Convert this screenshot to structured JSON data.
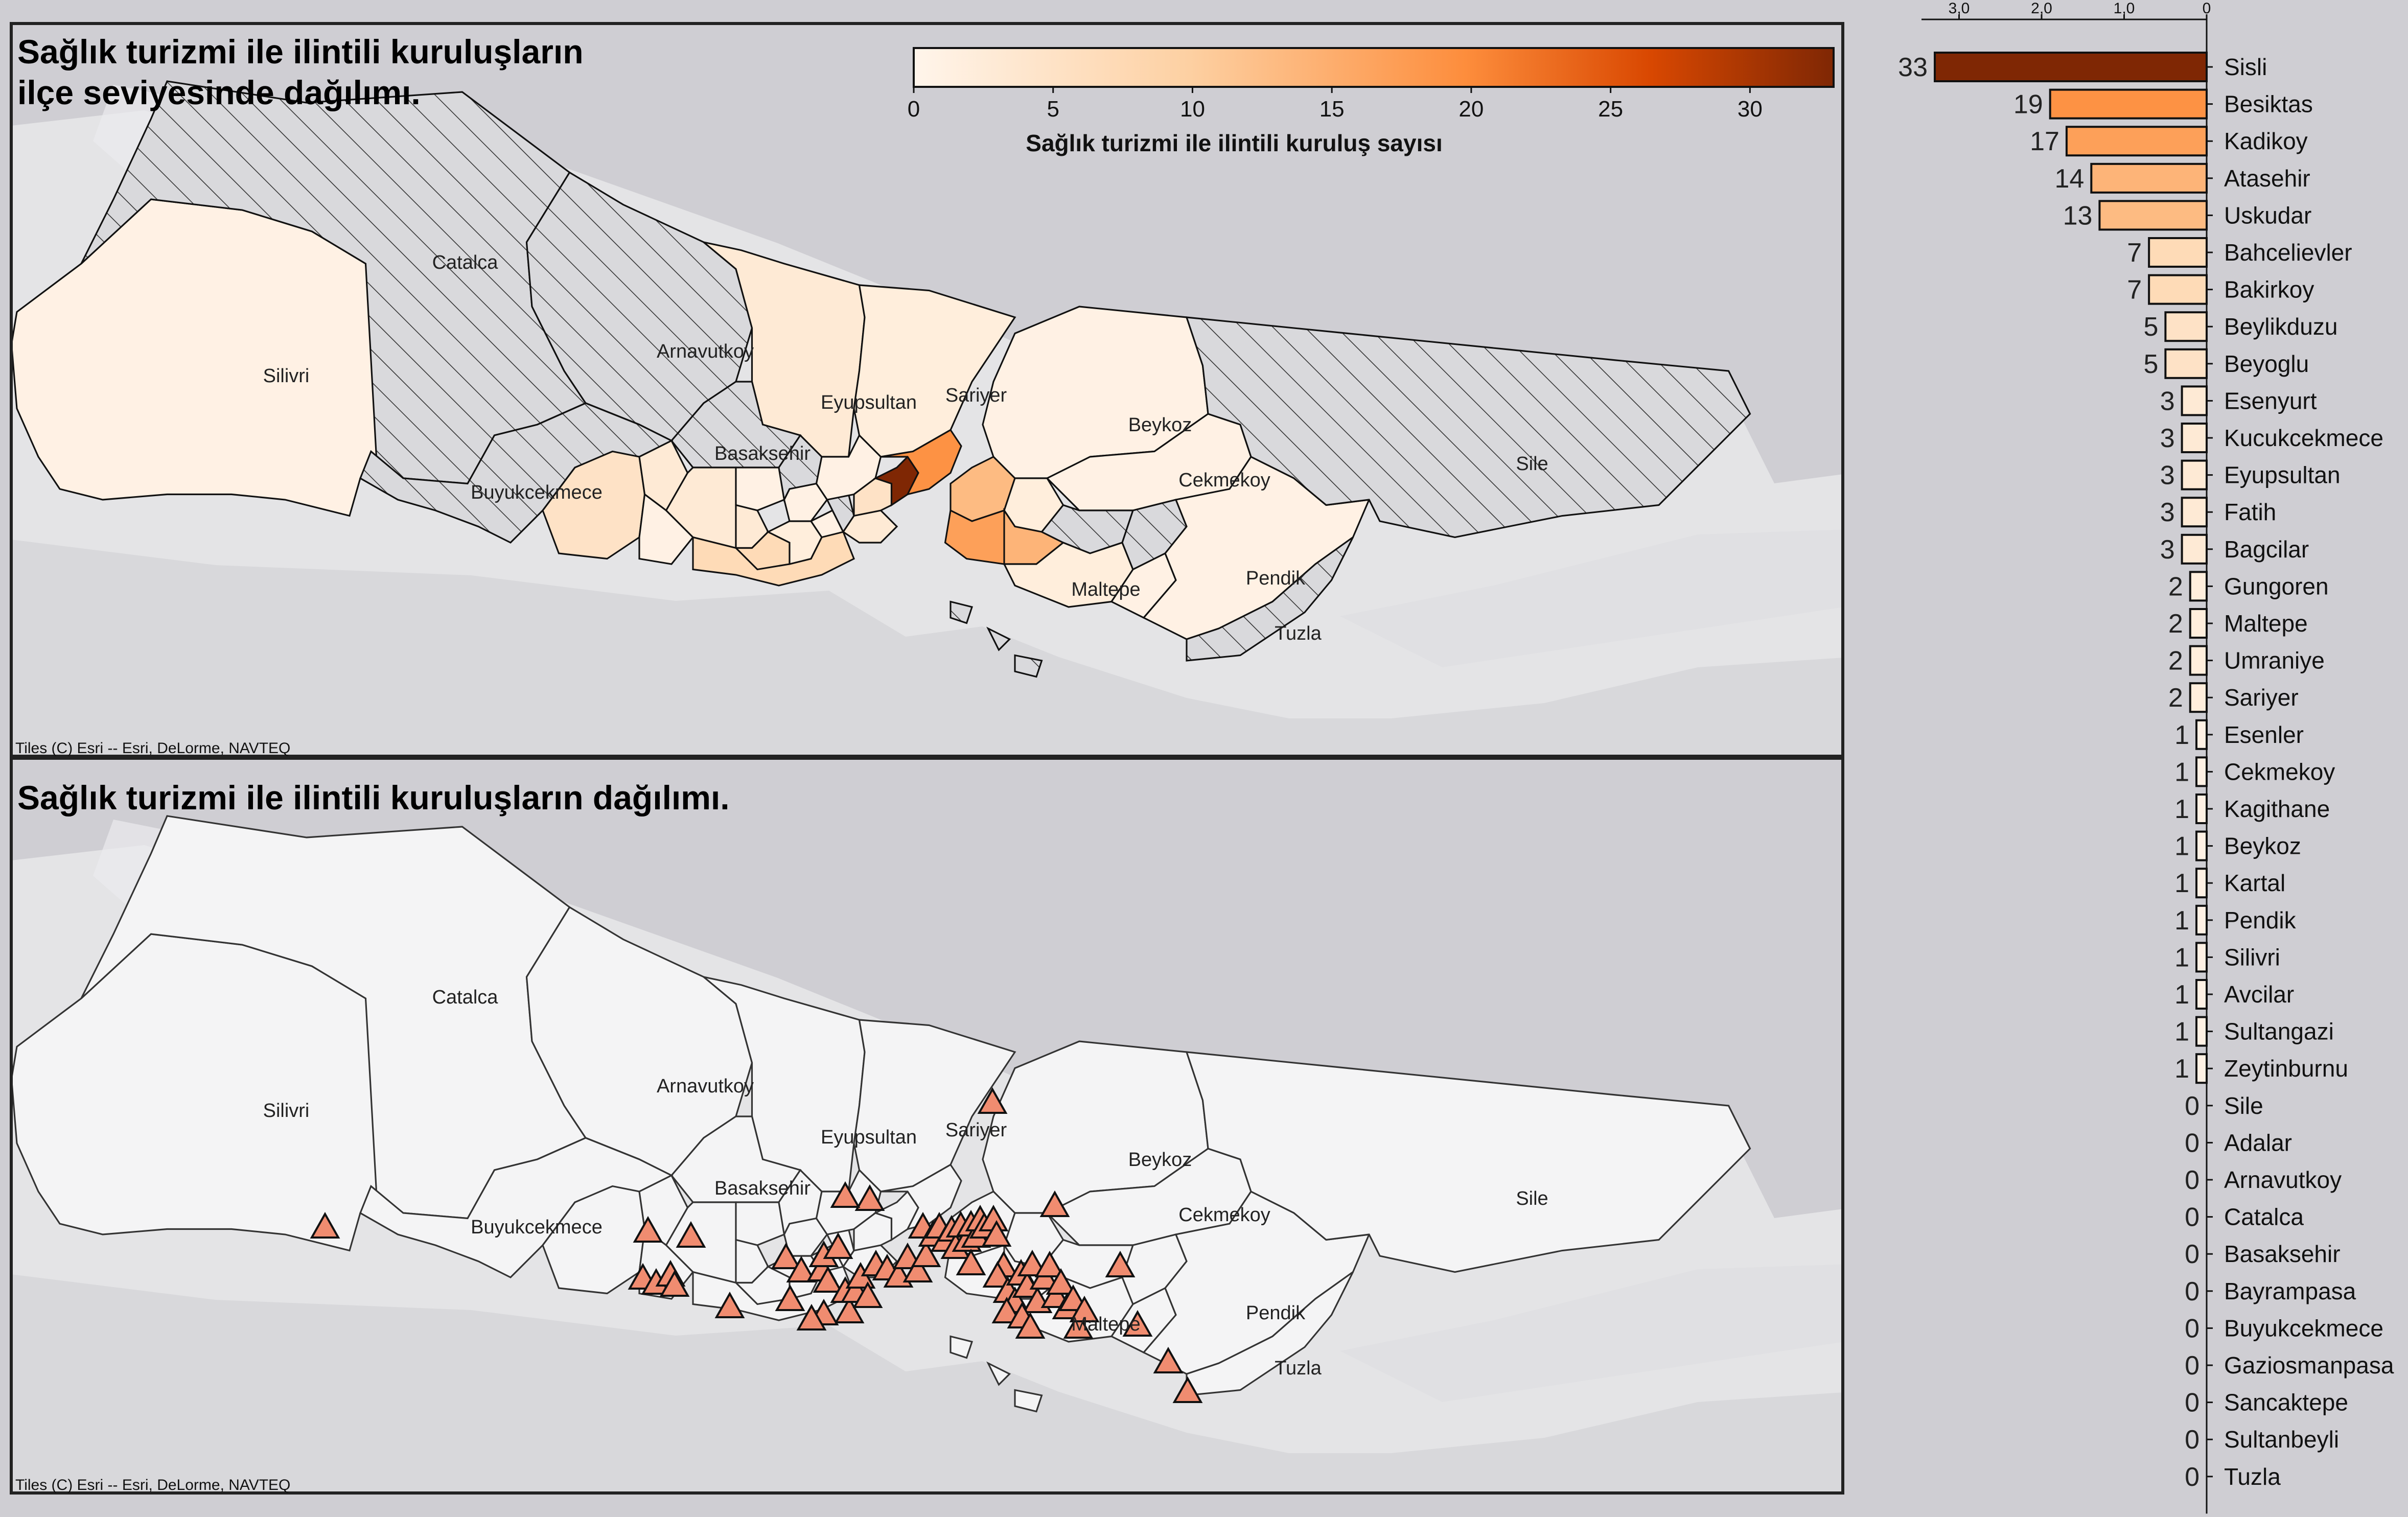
{
  "map_top": {
    "title_line1": "Sağlık turizmi ile ilintili kuruluşların",
    "title_line2": "ilçe seviyesinde dağılımı.",
    "credit": "Tiles (C) Esri -- Esri, DeLorme, NAVTEQ",
    "colorbar": {
      "label": "Sağlık turizmi ile ilintili kuruluş sayısı",
      "ticks": [
        "0",
        "5",
        "10",
        "15",
        "20",
        "25",
        "30"
      ],
      "max": 33,
      "colors": [
        "#fff5eb",
        "#fdd0a2",
        "#fd8d3c",
        "#d94801",
        "#7f2704"
      ]
    },
    "district_labels": [
      "Catalca",
      "Silivri",
      "Arnavutkoy",
      "Eyupsultan",
      "Sariyer",
      "Basaksehir",
      "Buyukcekmece",
      "Beykoz",
      "Cekmekoy",
      "Sile",
      "Maltepe",
      "Pendik",
      "Tuzla"
    ]
  },
  "map_bottom": {
    "title": "Sağlık turizmi ile ilintili kuruluşların dağılımı.",
    "credit": "Tiles (C) Esri -- Esri, DeLorme, NAVTEQ",
    "district_labels": [
      "Catalca",
      "Silivri",
      "Arnavutkoy",
      "Eyupsultan",
      "Sariyer",
      "Basaksehir",
      "Buyukcekmece",
      "Beykoz",
      "Cekmekoy",
      "Sile",
      "Maltepe",
      "Pendik",
      "Tuzla"
    ],
    "marker_color": "#f08c70"
  },
  "chart_data": {
    "type": "bar",
    "orientation": "horizontal",
    "x_axis_ticks": [
      "3,0",
      "2,0",
      "1,0",
      "0"
    ],
    "categories": [
      "Sisli",
      "Besiktas",
      "Kadikoy",
      "Atasehir",
      "Uskudar",
      "Bahcelievler",
      "Bakirkoy",
      "Beylikduzu",
      "Beyoglu",
      "Esenyurt",
      "Kucukcekmece",
      "Eyupsultan",
      "Fatih",
      "Bagcilar",
      "Gungoren",
      "Maltepe",
      "Umraniye",
      "Sariyer",
      "Esenler",
      "Cekmekoy",
      "Kagithane",
      "Beykoz",
      "Kartal",
      "Pendik",
      "Silivri",
      "Avcilar",
      "Sultangazi",
      "Zeytinburnu",
      "Sile",
      "Adalar",
      "Arnavutkoy",
      "Catalca",
      "Basaksehir",
      "Bayrampasa",
      "Buyukcekmece",
      "Gaziosmanpasa",
      "Sancaktepe",
      "Sultanbeyli",
      "Tuzla"
    ],
    "values": [
      33,
      19,
      17,
      14,
      13,
      7,
      7,
      5,
      5,
      3,
      3,
      3,
      3,
      3,
      2,
      2,
      2,
      2,
      1,
      1,
      1,
      1,
      1,
      1,
      1,
      1,
      1,
      1,
      0,
      0,
      0,
      0,
      0,
      0,
      0,
      0,
      0,
      0,
      0
    ],
    "colormap": "Oranges"
  }
}
